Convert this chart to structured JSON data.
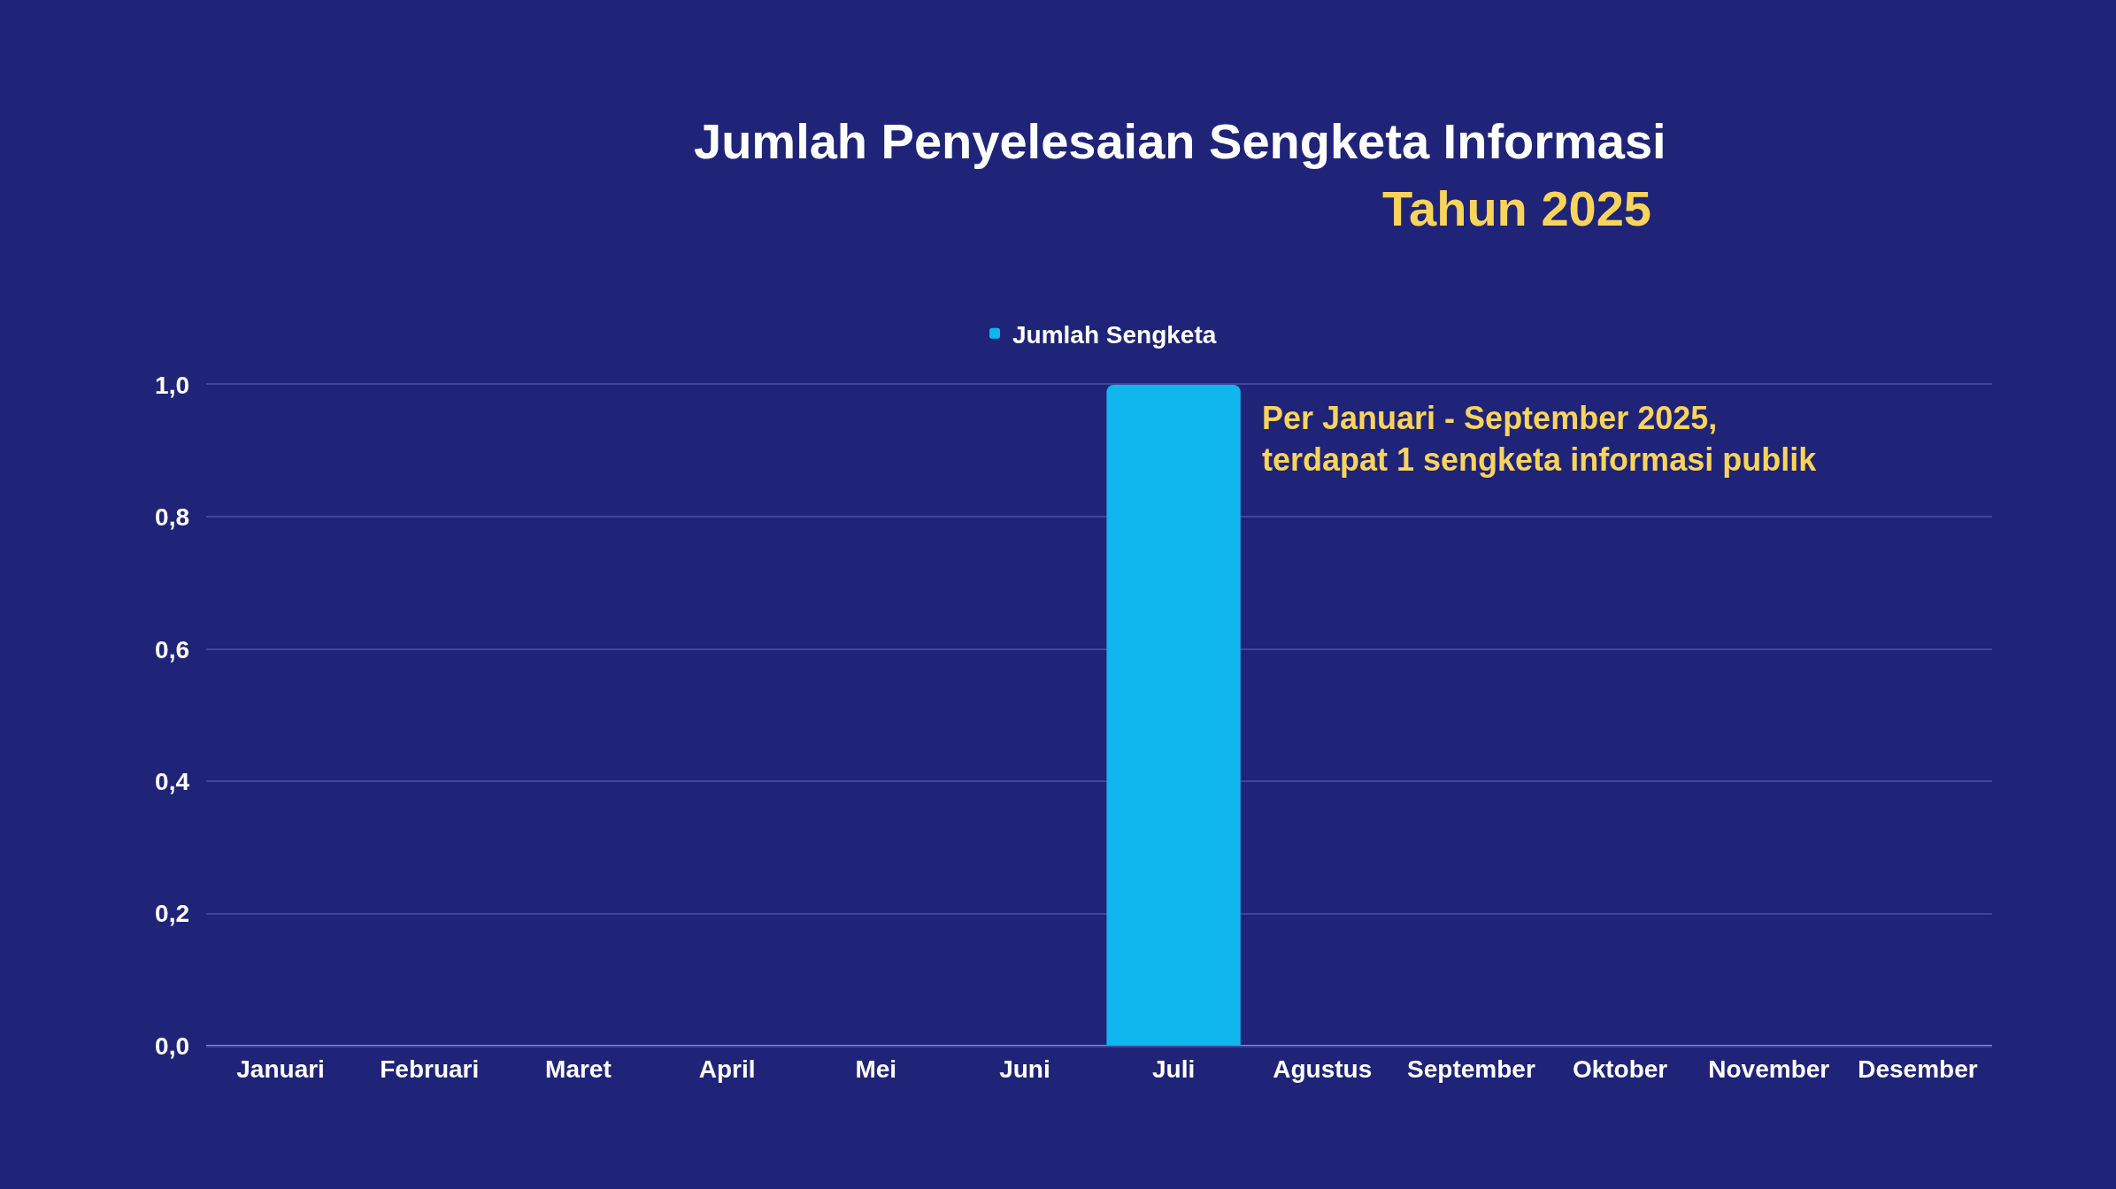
{
  "chart_data": {
    "type": "bar",
    "title": "Jumlah Penyelesaian Sengketa Informasi",
    "subtitle": "Tahun 2025",
    "categories": [
      "Januari",
      "Februari",
      "Maret",
      "April",
      "Mei",
      "Juni",
      "Juli",
      "Agustus",
      "September",
      "Oktober",
      "November",
      "Desember"
    ],
    "series": [
      {
        "name": "Jumlah Sengketa",
        "color": "#0fb7ee",
        "values": [
          0,
          0,
          0,
          0,
          0,
          0,
          1,
          0,
          0,
          0,
          0,
          0
        ]
      }
    ],
    "ylim": [
      0,
      1
    ],
    "yticks": [
      {
        "value": 0,
        "label": "0,0"
      },
      {
        "value": 0.2,
        "label": "0,2"
      },
      {
        "value": 0.4,
        "label": "0,4"
      },
      {
        "value": 0.6,
        "label": "0,6"
      },
      {
        "value": 0.8,
        "label": "0,8"
      },
      {
        "value": 1,
        "label": "1,0"
      }
    ],
    "grid": "y",
    "legend": "top",
    "annotations": [
      "Per Januari - September 2025,\nterdapat 1 sengketa informasi publik"
    ]
  }
}
